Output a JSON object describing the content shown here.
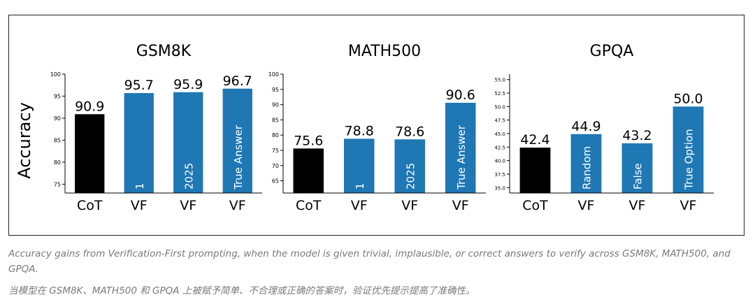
{
  "chart_data": [
    {
      "type": "bar",
      "title": "GSM8K",
      "ylabel": "Accuracy",
      "ylim": [
        73,
        100
      ],
      "yticks": [
        75,
        80,
        85,
        90,
        95,
        100
      ],
      "categories": [
        "CoT",
        "VF",
        "VF",
        "VF"
      ],
      "values": [
        90.9,
        95.7,
        95.9,
        96.7
      ],
      "bar_labels": [
        "",
        "1",
        "2025",
        "True Answer"
      ],
      "colors": [
        "#000000",
        "#1f77b4",
        "#1f77b4",
        "#1f77b4"
      ]
    },
    {
      "type": "bar",
      "title": "MATH500",
      "ylabel": "",
      "ylim": [
        61,
        100
      ],
      "yticks": [
        65,
        70,
        75,
        80,
        85,
        90,
        95,
        100
      ],
      "categories": [
        "CoT",
        "VF",
        "VF",
        "VF"
      ],
      "values": [
        75.6,
        78.8,
        78.6,
        90.6
      ],
      "bar_labels": [
        "",
        "1",
        "2025",
        "True Answer"
      ],
      "colors": [
        "#000000",
        "#1f77b4",
        "#1f77b4",
        "#1f77b4"
      ]
    },
    {
      "type": "bar",
      "title": "GPQA",
      "ylabel": "",
      "ylim": [
        34.0,
        56.0
      ],
      "yticks": [
        "35.0",
        "37.5",
        "40.0",
        "42.5",
        "45.0",
        "47.5",
        "50.0",
        "52.5",
        "55.0"
      ],
      "categories": [
        "CoT",
        "VF",
        "VF",
        "VF"
      ],
      "values": [
        42.4,
        44.9,
        43.2,
        50.0
      ],
      "value_labels": [
        "42.4",
        "44.9",
        "43.2",
        "50.0"
      ],
      "bar_labels": [
        "",
        "Random",
        "False",
        "True Option"
      ],
      "colors": [
        "#000000",
        "#1f77b4",
        "#1f77b4",
        "#1f77b4"
      ]
    }
  ],
  "captions": {
    "en": "Accuracy gains from Verification-First prompting, when the model is given trivial, implausible, or correct answers to verify across GSM8K, MATH500, and GPQA.",
    "zh": "当模型在 GSM8K、MATH500 和 GPQA 上被赋予简单、不合理或正确的答案时，验证优先提示提高了准确性。"
  }
}
